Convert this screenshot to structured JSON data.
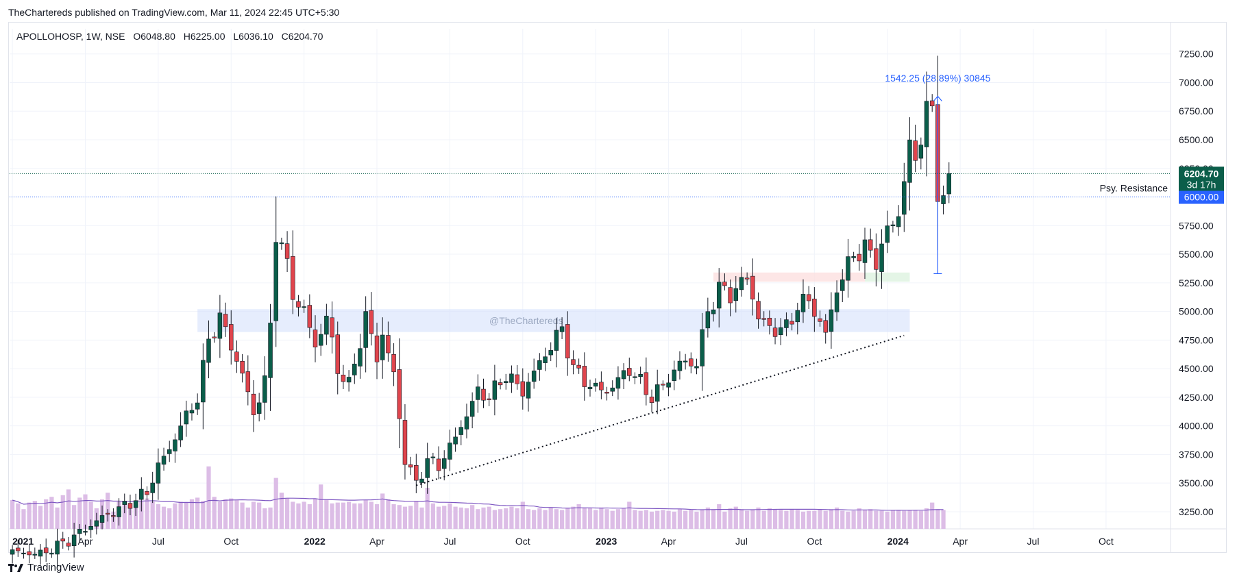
{
  "header": {
    "publisher_line": "TheChartereds published on TradingView.com, Mar 11, 2024 22:45 UTC+5:30"
  },
  "legend": {
    "symbol": "APOLLOHOSP, 1W, NSE",
    "open": "O6048.80",
    "high": "H6225.00",
    "low": "L6036.10",
    "close": "C6204.70"
  },
  "footer": {
    "brand": "TradingView",
    "logo_icon": "tradingview-logo-icon"
  },
  "colors": {
    "up": "#0b5e4a",
    "down": "#e0454d",
    "volume": "#dcbde6",
    "ma": "#7e57c2",
    "grid": "#f0f3fa",
    "accent": "#2962ff"
  },
  "chart_data": {
    "type": "candlestick",
    "title": "APOLLOHOSP, 1W, NSE",
    "ylim": [
      3100,
      7350
    ],
    "y_ticks": [
      "3250.00",
      "3500.00",
      "3750.00",
      "4000.00",
      "4250.00",
      "4500.00",
      "4750.00",
      "5000.00",
      "5250.00",
      "5500.00",
      "5750.00",
      "6000.00",
      "6250.00",
      "6500.00",
      "6750.00",
      "7000.00",
      "7250.00"
    ],
    "x_ticks": [
      {
        "label": "2021",
        "week": 0,
        "bold": true
      },
      {
        "label": "Apr",
        "week": 13
      },
      {
        "label": "Jul",
        "week": 26
      },
      {
        "label": "Oct",
        "week": 39
      },
      {
        "label": "2022",
        "week": 52,
        "bold": true
      },
      {
        "label": "Apr",
        "week": 65
      },
      {
        "label": "Jul",
        "week": 78
      },
      {
        "label": "Oct",
        "week": 91
      },
      {
        "label": "2023",
        "week": 104,
        "bold": true
      },
      {
        "label": "Apr",
        "week": 117
      },
      {
        "label": "Jul",
        "week": 130
      },
      {
        "label": "Oct",
        "week": 143
      },
      {
        "label": "2024",
        "week": 156,
        "bold": true
      },
      {
        "label": "Apr",
        "week": 169
      },
      {
        "label": "Jul",
        "week": 182
      },
      {
        "label": "Oct",
        "week": 195
      }
    ],
    "weeks_visible": 207,
    "anchors": [
      [
        0,
        2900
      ],
      [
        5,
        2880
      ],
      [
        10,
        3000
      ],
      [
        16,
        3200
      ],
      [
        20,
        3300
      ],
      [
        24,
        3420
      ],
      [
        26,
        3650
      ],
      [
        28,
        3800
      ],
      [
        30,
        4000
      ],
      [
        33,
        4250
      ],
      [
        35,
        4750
      ],
      [
        37,
        4950
      ],
      [
        39,
        4700
      ],
      [
        41,
        4450
      ],
      [
        43,
        4100
      ],
      [
        45,
        4400
      ],
      [
        46,
        4850
      ],
      [
        47,
        5700
      ],
      [
        48,
        5600
      ],
      [
        50,
        5150
      ],
      [
        52,
        5000
      ],
      [
        54,
        4700
      ],
      [
        56,
        4950
      ],
      [
        58,
        4500
      ],
      [
        60,
        4350
      ],
      [
        63,
        4950
      ],
      [
        65,
        4600
      ],
      [
        66,
        4800
      ],
      [
        68,
        4450
      ],
      [
        70,
        3700
      ],
      [
        72,
        3500
      ],
      [
        74,
        3700
      ],
      [
        76,
        3650
      ],
      [
        79,
        3900
      ],
      [
        83,
        4300
      ],
      [
        85,
        4250
      ],
      [
        88,
        4450
      ],
      [
        91,
        4300
      ],
      [
        94,
        4550
      ],
      [
        98,
        4850
      ],
      [
        100,
        4500
      ],
      [
        103,
        4350
      ],
      [
        106,
        4300
      ],
      [
        110,
        4500
      ],
      [
        114,
        4250
      ],
      [
        116,
        4350
      ],
      [
        119,
        4550
      ],
      [
        122,
        4550
      ],
      [
        124,
        5000
      ],
      [
        126,
        5200
      ],
      [
        128,
        5150
      ],
      [
        131,
        5300
      ],
      [
        133,
        4950
      ],
      [
        135,
        4850
      ],
      [
        138,
        4850
      ],
      [
        140,
        5050
      ],
      [
        142,
        5100
      ],
      [
        145,
        4800
      ],
      [
        147,
        5200
      ],
      [
        150,
        5500
      ],
      [
        152,
        5550
      ],
      [
        154,
        5450
      ],
      [
        156,
        5700
      ],
      [
        158,
        5850
      ],
      [
        159,
        6150
      ],
      [
        160,
        6450
      ],
      [
        161,
        6300
      ],
      [
        162,
        6550
      ],
      [
        163,
        6800
      ],
      [
        164,
        6700
      ],
      [
        165,
        6050
      ],
      [
        166,
        6040
      ],
      [
        167,
        6205
      ]
    ],
    "volume": [
      3500,
      3100,
      2400,
      3200,
      3400,
      2800,
      3600,
      3900,
      2600,
      4100,
      4800,
      2900,
      3800,
      4200,
      3300,
      2500,
      3600,
      4400,
      2100,
      3300,
      3100,
      2900,
      3000,
      3400,
      3700,
      3300,
      3000,
      2700,
      2500,
      3100,
      3300,
      3200,
      3600,
      3800,
      3400,
      7600,
      3900,
      3300,
      3600,
      3700,
      3500,
      3200,
      2600,
      3300,
      3200,
      2500,
      2600,
      6200,
      4400,
      3700,
      3300,
      3100,
      3300,
      3000,
      3700,
      5400,
      3600,
      3100,
      3200,
      3200,
      3300,
      3100,
      3100,
      3500,
      3300,
      3000,
      4300,
      3600,
      3000,
      2900,
      2700,
      2800,
      3400,
      2600,
      5000,
      3100,
      2700,
      2800,
      3100,
      2700,
      2600,
      2500,
      2900,
      2400,
      2600,
      2700,
      2300,
      2400,
      2500,
      2700,
      2500,
      3300,
      2400,
      2300,
      2500,
      2300,
      2600,
      2400,
      2300,
      2500,
      2700,
      3000,
      2600,
      2500,
      2300,
      2600,
      2400,
      2200,
      2400,
      2500,
      3300,
      2300,
      2200,
      2300,
      2100,
      2200,
      2300,
      2200,
      2100,
      2400,
      2200,
      2300,
      2100,
      2300,
      2600,
      2400,
      3000,
      2100,
      2500,
      2700,
      2400,
      2200,
      2300,
      2600,
      2200,
      2500,
      2400,
      2300,
      2200,
      2400,
      2300,
      2100,
      2200,
      2200,
      2300,
      2200,
      2400,
      2600,
      2200,
      2100,
      2200,
      2500,
      2300,
      2400,
      2200,
      2200,
      2100,
      2300,
      2300,
      2200,
      2300,
      2300,
      2200,
      2500,
      3200,
      2400,
      2300
    ],
    "annotations": {
      "watermark": "@TheChartereds",
      "measure_label": "1542.25 (28.89%) 30845",
      "psy_resistance_label": "Psy. Resistance",
      "psy_resistance_price": "6000.00",
      "last_price": "6204.70",
      "countdown": "3d 17h"
    }
  }
}
